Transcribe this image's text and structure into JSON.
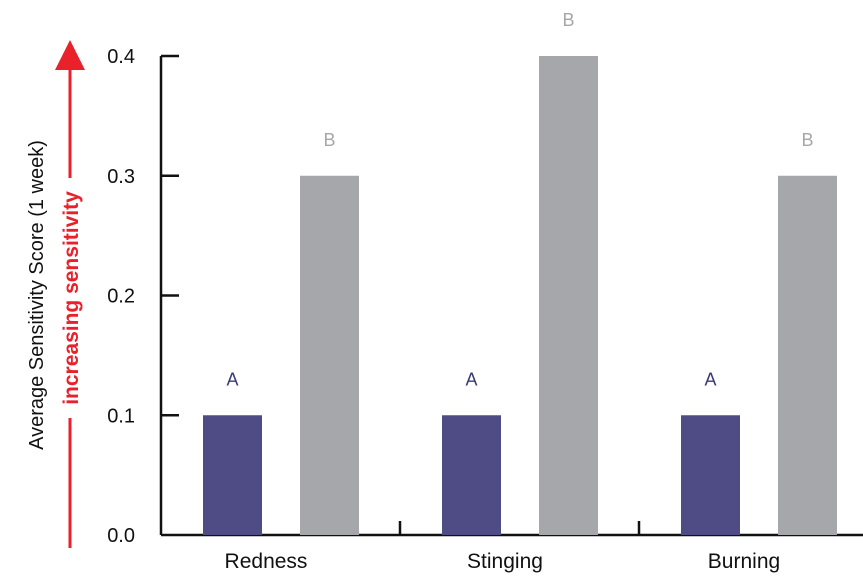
{
  "chart_data": {
    "type": "bar",
    "categories": [
      "Redness",
      "Stinging",
      "Burning"
    ],
    "series": [
      {
        "values": [
          0.1,
          0.1,
          0.1
        ],
        "color": "#4f4c85",
        "group_labels": [
          "A",
          "A",
          "A"
        ],
        "label_color": "#3a3a7a"
      },
      {
        "values": [
          0.3,
          0.4,
          0.3
        ],
        "color": "#a6a7ab",
        "group_labels": [
          "B",
          "B",
          "B"
        ],
        "label_color": "#a6a7ab"
      }
    ],
    "title": "",
    "xlabel": "",
    "ylabel": "Average Sensitivity Score (1 week)",
    "arrow_label": "increasing sensitivity",
    "arrow_color": "#e8212a",
    "ylim": [
      0,
      0.4
    ],
    "yticks": [
      "0.0",
      "0.1",
      "0.2",
      "0.3",
      "0.4"
    ],
    "grid": false,
    "legend": "none"
  }
}
